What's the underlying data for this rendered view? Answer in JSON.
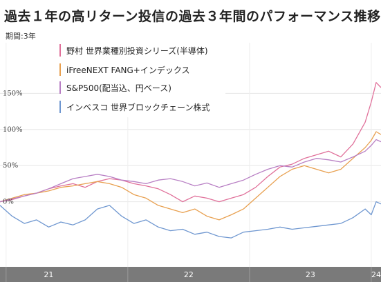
{
  "header": {
    "title": "過去１年の高リターン投信の過去３年間のパフォーマンス推移",
    "period_label": "期間:3年"
  },
  "chart_data": {
    "type": "line",
    "title": "過去１年の高リターン投信の過去３年間のパフォーマンス推移",
    "xlabel": "",
    "ylabel": "",
    "x_ticks": [
      "21",
      "22",
      "23",
      "24"
    ],
    "y_ticks": [
      "150%",
      "100%",
      "50%",
      "0%"
    ],
    "y_tick_values": [
      150,
      100,
      50,
      0
    ],
    "ylim": [
      -90,
      220
    ],
    "xlim": [
      2020.95,
      2024.08
    ],
    "grid": true,
    "legend_position": "top-left",
    "series": [
      {
        "name": "野村 世界業種別投資シリーズ(半導体)",
        "color": "#e0709a",
        "x": [
          2020.95,
          2021.05,
          2021.15,
          2021.25,
          2021.35,
          2021.45,
          2021.55,
          2021.65,
          2021.75,
          2021.85,
          2021.95,
          2022.05,
          2022.15,
          2022.25,
          2022.35,
          2022.45,
          2022.55,
          2022.65,
          2022.75,
          2022.85,
          2022.95,
          2023.05,
          2023.15,
          2023.25,
          2023.35,
          2023.45,
          2023.55,
          2023.65,
          2023.75,
          2023.85,
          2023.95,
          2024.0,
          2024.04,
          2024.08
        ],
        "y": [
          0,
          3,
          8,
          12,
          18,
          22,
          25,
          20,
          28,
          32,
          30,
          25,
          22,
          18,
          10,
          0,
          8,
          5,
          0,
          5,
          10,
          20,
          35,
          48,
          52,
          60,
          65,
          70,
          62,
          80,
          110,
          138,
          165,
          158
        ]
      },
      {
        "name": "iFreeNEXT FANG+インデックス",
        "color": "#e8a050",
        "x": [
          2020.95,
          2021.05,
          2021.15,
          2021.25,
          2021.35,
          2021.45,
          2021.55,
          2021.65,
          2021.75,
          2021.85,
          2021.95,
          2022.05,
          2022.15,
          2022.25,
          2022.35,
          2022.45,
          2022.55,
          2022.65,
          2022.75,
          2022.85,
          2022.95,
          2023.05,
          2023.15,
          2023.25,
          2023.35,
          2023.45,
          2023.55,
          2023.65,
          2023.75,
          2023.85,
          2023.95,
          2024.0,
          2024.04,
          2024.08
        ],
        "y": [
          0,
          5,
          10,
          12,
          15,
          20,
          22,
          25,
          28,
          25,
          20,
          10,
          5,
          -5,
          -10,
          -15,
          -10,
          -20,
          -25,
          -18,
          -10,
          5,
          20,
          35,
          45,
          50,
          45,
          40,
          45,
          60,
          75,
          85,
          97,
          93
        ]
      },
      {
        "name": "S&P500(配当込、円ベース)",
        "color": "#b87fc4",
        "x": [
          2020.95,
          2021.05,
          2021.15,
          2021.25,
          2021.35,
          2021.45,
          2021.55,
          2021.65,
          2021.75,
          2021.85,
          2021.95,
          2022.05,
          2022.15,
          2022.25,
          2022.35,
          2022.45,
          2022.55,
          2022.65,
          2022.75,
          2022.85,
          2022.95,
          2023.05,
          2023.15,
          2023.25,
          2023.35,
          2023.45,
          2023.55,
          2023.65,
          2023.75,
          2023.85,
          2023.95,
          2024.0,
          2024.04,
          2024.08
        ],
        "y": [
          0,
          4,
          8,
          12,
          18,
          25,
          32,
          35,
          38,
          35,
          30,
          28,
          25,
          30,
          32,
          28,
          22,
          26,
          20,
          25,
          30,
          38,
          45,
          50,
          48,
          55,
          60,
          58,
          55,
          62,
          70,
          78,
          86,
          83
        ]
      },
      {
        "name": "インベスコ 世界ブロックチェーン株式",
        "color": "#6f97d0",
        "x": [
          2020.95,
          2021.05,
          2021.15,
          2021.25,
          2021.35,
          2021.45,
          2021.55,
          2021.65,
          2021.75,
          2021.85,
          2021.95,
          2022.05,
          2022.15,
          2022.25,
          2022.35,
          2022.45,
          2022.55,
          2022.65,
          2022.75,
          2022.85,
          2022.95,
          2023.05,
          2023.15,
          2023.25,
          2023.35,
          2023.45,
          2023.55,
          2023.65,
          2023.75,
          2023.85,
          2023.95,
          2024.0,
          2024.04,
          2024.08
        ],
        "y": [
          -5,
          -20,
          -30,
          -25,
          -35,
          -28,
          -32,
          -25,
          -10,
          -5,
          -20,
          -30,
          -25,
          -35,
          -40,
          -38,
          -45,
          -42,
          -48,
          -50,
          -42,
          -40,
          -38,
          -35,
          -38,
          -36,
          -34,
          -32,
          -30,
          -22,
          -10,
          -18,
          0,
          -3
        ]
      }
    ]
  }
}
